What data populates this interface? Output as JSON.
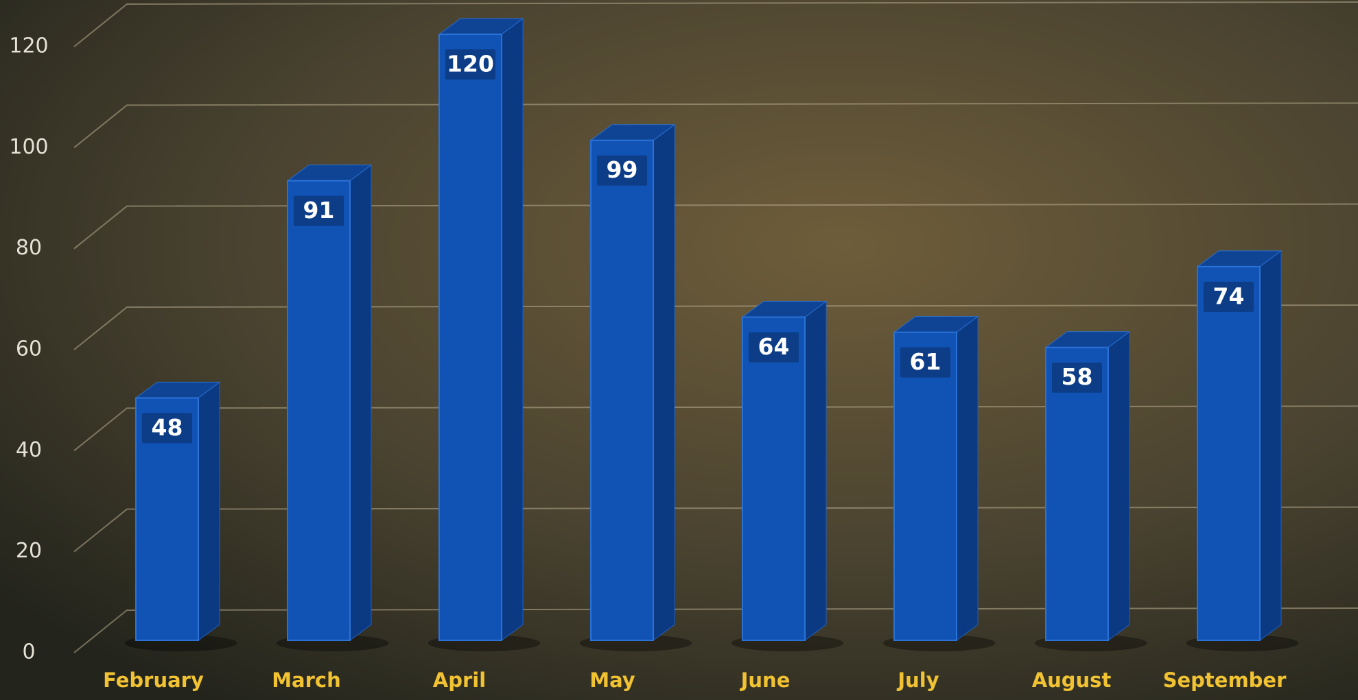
{
  "chart_data": {
    "type": "bar",
    "categories": [
      "February",
      "March",
      "April",
      "May",
      "June",
      "July",
      "August",
      "September"
    ],
    "values": [
      48,
      91,
      120,
      99,
      64,
      61,
      58,
      74
    ],
    "color": "#1153b5",
    "ylim": [
      0,
      120
    ],
    "yticks": [
      0,
      20,
      40,
      60,
      80,
      100,
      120
    ],
    "grid": true
  }
}
